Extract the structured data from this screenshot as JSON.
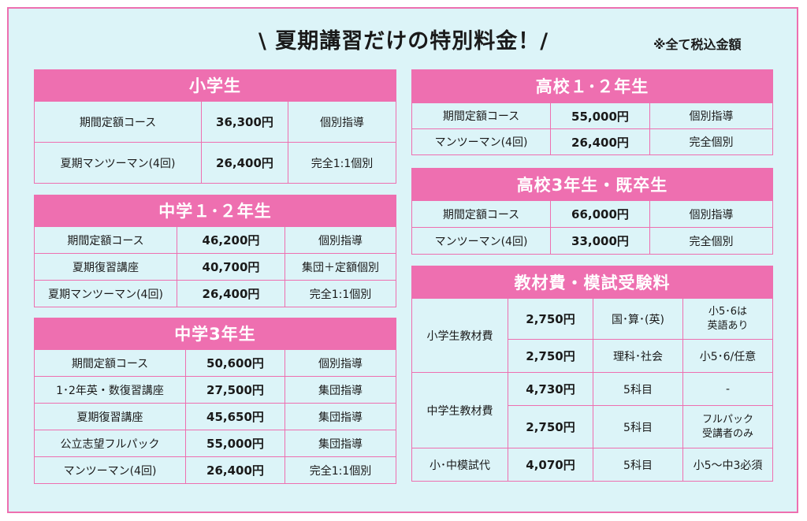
{
  "title": "\\ 夏期講習だけの特別料金！/",
  "tax_note": "※全て税込金額",
  "elementary": {
    "header": "小学生",
    "rows": [
      {
        "course": "期間定額コース",
        "price": "36,300円",
        "type": "個別指導"
      },
      {
        "course": "夏期マンツーマン(4回)",
        "price": "26,400円",
        "type": "完全1:1個別"
      }
    ]
  },
  "junior12": {
    "header": "中学１･２年生",
    "rows": [
      {
        "course": "期間定額コース",
        "price": "46,200円",
        "type": "個別指導"
      },
      {
        "course": "夏期復習講座",
        "price": "40,700円",
        "type": "集団＋定額個別"
      },
      {
        "course": "夏期マンツーマン(4回)",
        "price": "26,400円",
        "type": "完全1:1個別"
      }
    ]
  },
  "junior3": {
    "header": "中学3年生",
    "rows": [
      {
        "course": "期間定額コース",
        "price": "50,600円",
        "type": "個別指導"
      },
      {
        "course": "1･2年英・数復習講座",
        "price": "27,500円",
        "type": "集団指導"
      },
      {
        "course": "夏期復習講座",
        "price": "45,650円",
        "type": "集団指導"
      },
      {
        "course": "公立志望フルパック",
        "price": "55,000円",
        "type": "集団指導"
      },
      {
        "course": "マンツーマン(4回)",
        "price": "26,400円",
        "type": "完全1:1個別"
      }
    ]
  },
  "high12": {
    "header": "高校１･２年生",
    "rows": [
      {
        "course": "期間定額コース",
        "price": "55,000円",
        "type": "個別指導"
      },
      {
        "course": "マンツーマン(4回)",
        "price": "26,400円",
        "type": "完全個別"
      }
    ]
  },
  "high3": {
    "header": "高校3年生・既卒生",
    "rows": [
      {
        "course": "期間定額コース",
        "price": "66,000円",
        "type": "個別指導"
      },
      {
        "course": "マンツーマン(4回)",
        "price": "33,000円",
        "type": "完全個別"
      }
    ]
  },
  "materials": {
    "header": "教材費・模試受験料",
    "elem_label": "小学生教材費",
    "elem_rows": [
      {
        "price": "2,750円",
        "subject": "国･算･(英)",
        "note1": "小5･6は",
        "note2": "英語あり"
      },
      {
        "price": "2,750円",
        "subject": "理科･社会",
        "note1": "小5･6/任意",
        "note2": ""
      }
    ],
    "jr_label": "中学生教材費",
    "jr_rows": [
      {
        "price": "4,730円",
        "subject": "5科目",
        "note1": "-",
        "note2": ""
      },
      {
        "price": "2,750円",
        "subject": "5科目",
        "note1": "フルパック",
        "note2": "受講者のみ"
      }
    ],
    "mock_label": "小･中模試代",
    "mock_row": {
      "price": "4,070円",
      "subject": "5科目",
      "note1": "小5〜中3必須",
      "note2": ""
    }
  }
}
